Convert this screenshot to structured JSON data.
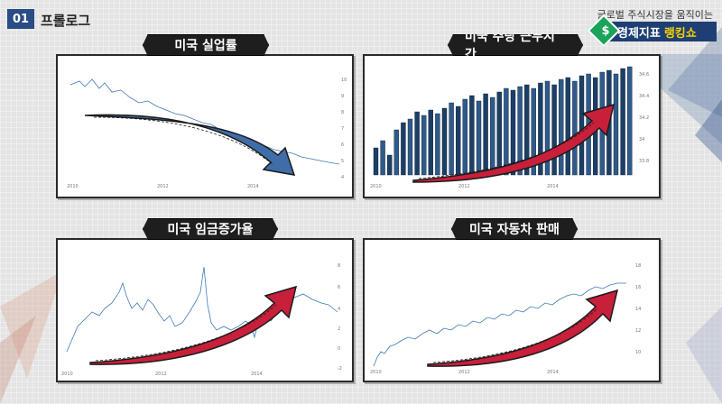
{
  "header": {
    "section_number": "01",
    "section_title": "프롤로그"
  },
  "brand": {
    "tagline": "글로벌 주식시장을 움직이는",
    "icon": "dollar-icon",
    "name_main": "경제지표",
    "name_accent": "랭킹쇼",
    "accent_color": "#f6d200",
    "bar_color": "#1f3f74"
  },
  "panels": [
    {
      "title": "미국 실업률",
      "arrow": "down",
      "arrow_color": "#3f6da8",
      "x_ticks": [
        "2010",
        "2012",
        "2014"
      ],
      "y_ticks": [
        "10",
        "9",
        "8",
        "7",
        "6",
        "5",
        "4"
      ]
    },
    {
      "title": "미국 주당 근무시간",
      "arrow": "up",
      "arrow_color": "#c81f3a",
      "x_ticks": [
        "2010",
        "2012",
        "2014"
      ],
      "y_ticks": [
        "34.6",
        "34.4",
        "34.2",
        "34",
        "33.8"
      ]
    },
    {
      "title": "미국 임금증가율",
      "arrow": "up",
      "arrow_color": "#c81f3a",
      "x_ticks": [
        "2010",
        "2012",
        "2014"
      ],
      "y_ticks": [
        "8",
        "6",
        "4",
        "2",
        "0",
        "-2"
      ]
    },
    {
      "title": "미국 자동차 판매",
      "arrow": "up",
      "arrow_color": "#c81f3a",
      "x_ticks": [
        "2010",
        "2012",
        "2014"
      ],
      "y_ticks": [
        "18",
        "16",
        "14",
        "12",
        "10"
      ]
    }
  ]
}
